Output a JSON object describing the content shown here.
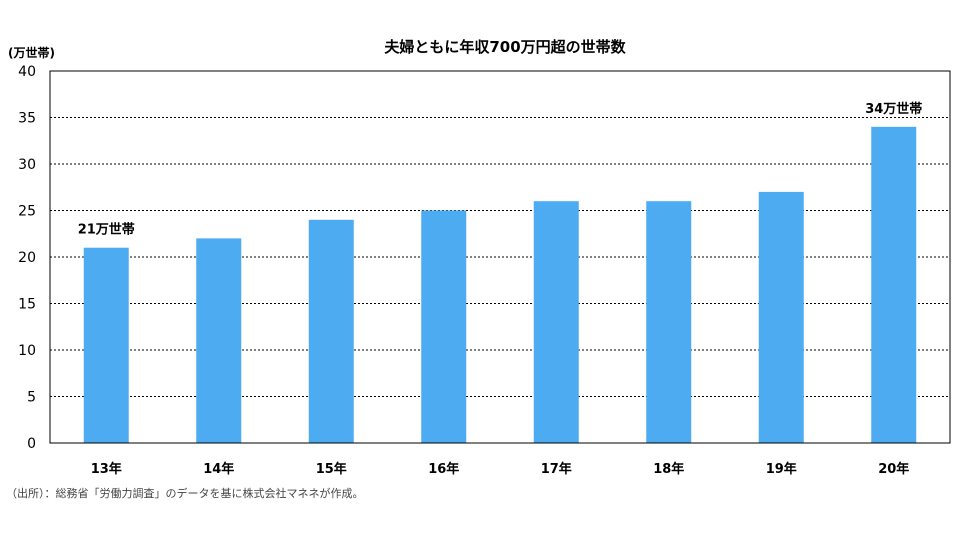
{
  "chart_data": {
    "type": "bar",
    "title": "夫婦ともに年収700万円超の世帯数",
    "ylabel": "(万世帯)",
    "xlabel": "",
    "categories": [
      "13年",
      "14年",
      "15年",
      "16年",
      "17年",
      "18年",
      "19年",
      "20年"
    ],
    "values": [
      21,
      22,
      24,
      25,
      26,
      26,
      27,
      34
    ],
    "ylim": [
      0,
      40
    ],
    "yticks": [
      0,
      5,
      10,
      15,
      20,
      25,
      30,
      35,
      40
    ],
    "grid": true,
    "grid_style": "dashed",
    "bar_color": "#4dabf2",
    "annotations": [
      {
        "category_index": 0,
        "text": "21万世帯"
      },
      {
        "category_index": 7,
        "text": "34万世帯"
      }
    ]
  },
  "source": "（出所）：総務省「労働力調査」のデータを基に株式会社マネネが作成。"
}
